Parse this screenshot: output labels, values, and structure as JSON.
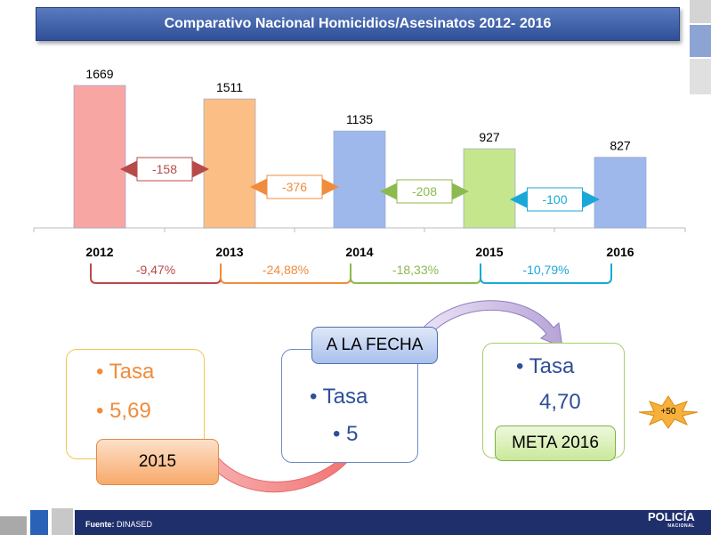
{
  "title": "Comparativo Nacional Homicidios/Asesinatos 2012-  2016",
  "chart_data": {
    "type": "bar",
    "categories": [
      "2012",
      "2013",
      "2014",
      "2015",
      "2016"
    ],
    "values": [
      1669,
      1511,
      1135,
      927,
      827
    ],
    "colors": [
      "#f8a6a4",
      "#fbbf86",
      "#9fb8ec",
      "#c6e68e",
      "#9fb8ec"
    ],
    "differences": [
      {
        "label": "-158",
        "color": "#b84a4a"
      },
      {
        "label": "-376",
        "color": "#f08c3c"
      },
      {
        "label": "-208",
        "color": "#8bba4e"
      },
      {
        "label": "-100",
        "color": "#1aa8d8"
      }
    ],
    "percentages": [
      {
        "label": "-9,47%",
        "color": "#b84a4a"
      },
      {
        "label": "-24,88%",
        "color": "#f08c3c"
      },
      {
        "label": "-18,33%",
        "color": "#8bba4e"
      },
      {
        "label": "-10,79%",
        "color": "#1aa8d8"
      }
    ]
  },
  "flow": {
    "box1": {
      "line1": "Tasa",
      "line2": "5,69",
      "tag": "2015"
    },
    "box2": {
      "tag": "A LA FECHA",
      "line1": "Tasa",
      "line2": "5"
    },
    "box3": {
      "line1": "Tasa",
      "line2": "4,70",
      "tag": "META 2016"
    },
    "badge": "+50"
  },
  "footer": {
    "source_label": "Fuente:",
    "source_value": "DINASED",
    "logo": "POLICÍA",
    "logo_sub": "NACIONAL"
  }
}
